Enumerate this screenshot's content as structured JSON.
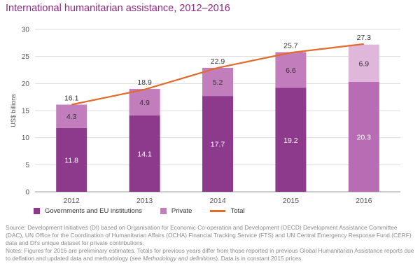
{
  "title": "International humanitarian assistance, 2012–2016",
  "chart_data": {
    "type": "bar",
    "stacked": true,
    "categories": [
      "2012",
      "2013",
      "2014",
      "2015",
      "2016"
    ],
    "series": [
      {
        "name": "Governments and EU institutions",
        "kind": "bar",
        "values": [
          11.8,
          14.1,
          17.7,
          19.2,
          20.3
        ],
        "color": "#8e3a8c"
      },
      {
        "name": "Private",
        "kind": "bar",
        "values": [
          4.3,
          4.9,
          5.2,
          6.6,
          6.9
        ],
        "color": "#c27dbd"
      },
      {
        "name": "Total",
        "kind": "line",
        "values": [
          16.1,
          18.9,
          22.9,
          25.7,
          27.3
        ],
        "color": "#e06b2b"
      }
    ],
    "preliminary_categories": [
      "2016"
    ],
    "preliminary_colors": {
      "Governments and EU institutions": "#b86cb3",
      "Private": "#dfb7da"
    },
    "ylabel": "US$ billions",
    "ylim": [
      0,
      30
    ],
    "yticks": [
      0,
      5,
      10,
      15,
      20,
      25,
      30
    ],
    "legend_position": "bottom-left",
    "grid": true,
    "gridline_color": "#dcdcdc"
  },
  "legend": {
    "governments": "Governments and EU institutions",
    "private": "Private",
    "total": "Total"
  },
  "notes": {
    "source": "Source: Development Initiatives (DI) based on Organisation for Economic Co-operation and Development (OECD) Development Assistance Committee (DAC), UN Office for the Coordination of Humanitarian Affairs (OCHA) Financial Tracking Service (FTS) and UN Central Emergency Response Fund (CERF) data and DI's unique dataset for private contributions.",
    "notes_before": "Notes: Figures for 2016 are preliminary estimates. Totals for previous years differ from those reported in previous Global Humanitarian Assistance reports due to deflation and updated data and methodology (see ",
    "notes_link": "Methodology and definitions",
    "notes_after": "). Data is in constant 2015 prices."
  }
}
